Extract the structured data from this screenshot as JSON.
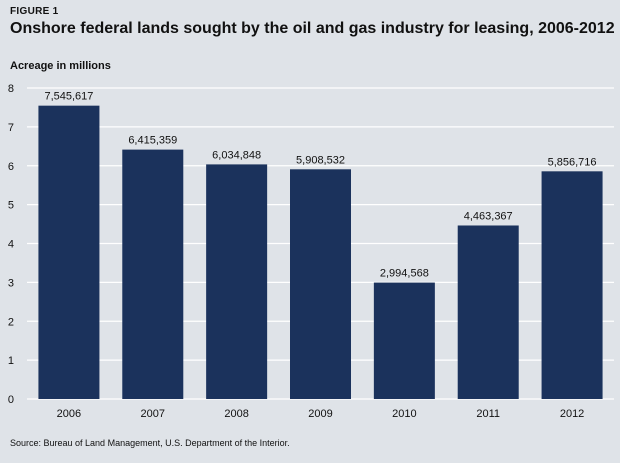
{
  "figure_label": "FIGURE 1",
  "source": "Source: Bureau of Land Management, U.S. Department of the Interior.",
  "colors": {
    "bar": "#1b325c",
    "grid": "#ffffff",
    "background": "#dfe3e8"
  },
  "chart_data": {
    "type": "bar",
    "title": "Onshore federal lands sought by the oil and gas industry for leasing, 2006-2012",
    "xlabel": "",
    "ylabel": "Acreage in millions",
    "categories": [
      "2006",
      "2007",
      "2008",
      "2009",
      "2010",
      "2011",
      "2012"
    ],
    "values": [
      7.545617,
      6.415359,
      6.034848,
      5.908532,
      2.994568,
      4.463367,
      5.856716
    ],
    "data_labels": [
      "7,545,617",
      "6,415,359",
      "6,034,848",
      "5,908,532",
      "2,994,568",
      "4,463,367",
      "5,856,716"
    ],
    "ylim": [
      0,
      8
    ],
    "yticks": [
      0,
      1,
      2,
      3,
      4,
      5,
      6,
      7,
      8
    ],
    "grid": true,
    "legend": "none"
  }
}
